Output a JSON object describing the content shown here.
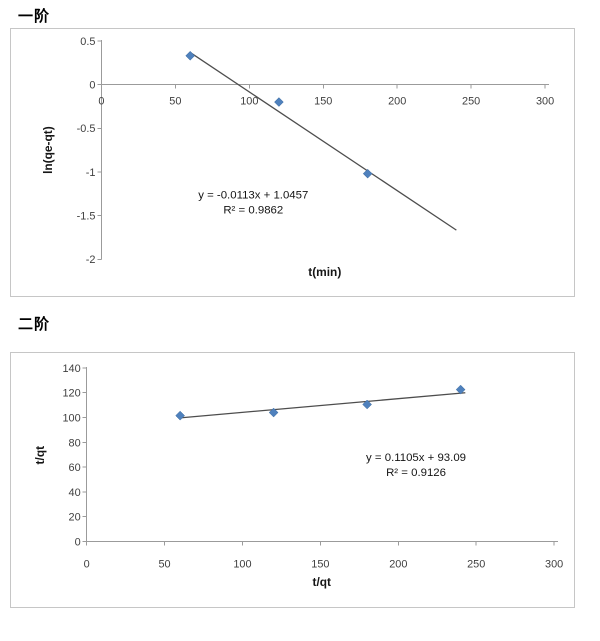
{
  "page": {
    "background": "#ffffff"
  },
  "colors": {
    "marker": "#4f81bd",
    "marker_stroke": "#3a699c",
    "trendline": "#4d4d4d",
    "axis": "#9b9b9b",
    "tick_text": "#3f3f3f",
    "frame_border": "#c6c6c6",
    "equation_text": "#141414",
    "title_text": "#000000"
  },
  "chart_data": [
    {
      "type": "scatter",
      "title": "一阶",
      "xlabel": "t(min)",
      "ylabel": "ln(qe-qt)",
      "x": [
        60,
        120,
        180
      ],
      "y": [
        0.33,
        -0.2,
        -1.02
      ],
      "xlim": [
        0,
        300
      ],
      "ylim": [
        -2,
        0.5
      ],
      "xticks": [
        0,
        50,
        100,
        150,
        200,
        250,
        300
      ],
      "yticks": [
        0.5,
        0,
        -0.5,
        -1,
        -1.5,
        -2
      ],
      "grid": false,
      "legend": null,
      "marker": "diamond",
      "trendline": {
        "slope": -0.0113,
        "intercept": 1.0457,
        "x_start": 60,
        "x_end": 240,
        "equation_label": "y = -0.0113x + 1.0457",
        "r2_label": "R² = 0.9862"
      }
    },
    {
      "type": "scatter",
      "title": "二阶",
      "xlabel": "t/qt",
      "ylabel": "t/qt",
      "x": [
        60,
        120,
        180,
        240
      ],
      "y": [
        101.5,
        104,
        110.5,
        122.5
      ],
      "xlim": [
        0,
        300
      ],
      "ylim": [
        0,
        140
      ],
      "xticks": [
        0,
        50,
        100,
        150,
        200,
        250,
        300
      ],
      "yticks": [
        0,
        20,
        40,
        60,
        80,
        100,
        120,
        140
      ],
      "grid": false,
      "legend": null,
      "marker": "diamond",
      "trendline": {
        "slope": 0.1105,
        "intercept": 93.09,
        "x_start": 60,
        "x_end": 243,
        "equation_label": "y = 0.1105x + 93.09",
        "r2_label": "R² = 0.9126"
      }
    }
  ]
}
